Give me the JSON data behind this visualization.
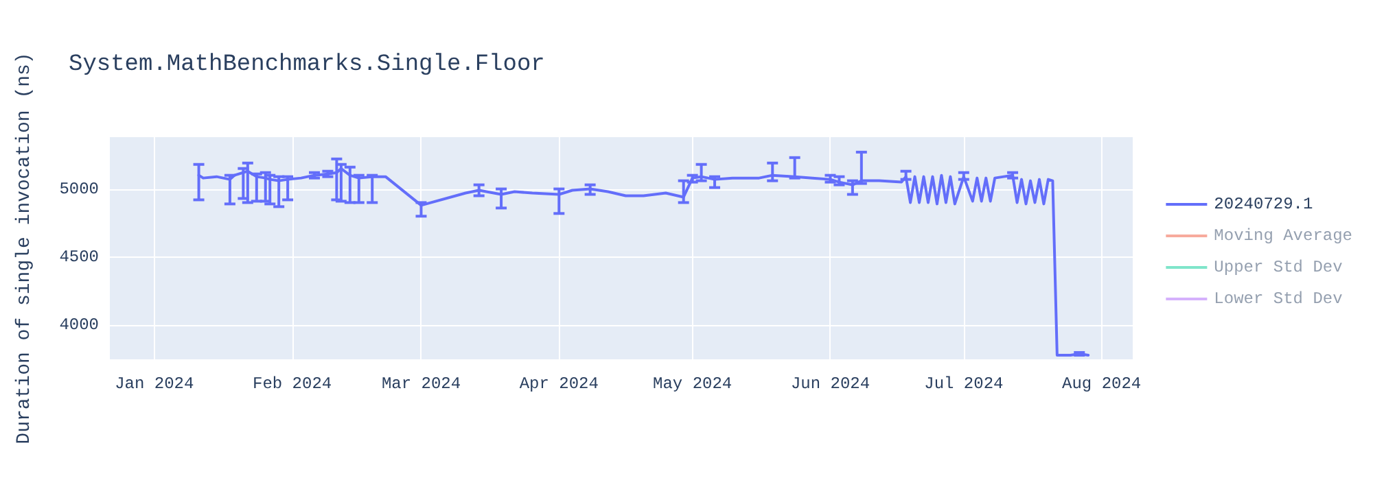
{
  "chart_data": {
    "type": "line",
    "title": "System.MathBenchmarks.Single.Floor",
    "ylabel": "Duration of single invocation (ns)",
    "xlim": [
      "2023-12-22",
      "2024-08-08"
    ],
    "xticks": [
      {
        "value": "2024-01-01",
        "label": "Jan 2024"
      },
      {
        "value": "2024-02-01",
        "label": "Feb 2024"
      },
      {
        "value": "2024-03-01",
        "label": "Mar 2024"
      },
      {
        "value": "2024-04-01",
        "label": "Apr 2024"
      },
      {
        "value": "2024-05-01",
        "label": "May 2024"
      },
      {
        "value": "2024-06-01",
        "label": "Jun 2024"
      },
      {
        "value": "2024-07-01",
        "label": "Jul 2024"
      },
      {
        "value": "2024-08-01",
        "label": "Aug 2024"
      }
    ],
    "ylim": [
      3750,
      5380
    ],
    "yticks": [
      4000,
      4500,
      5000
    ],
    "grid": true,
    "legend": "right",
    "marker": "none",
    "series": [
      {
        "name": "20240729.1",
        "color": "#636efa",
        "x": [
          "2024-01-11",
          "2024-01-12",
          "2024-01-15",
          "2024-01-18",
          "2024-01-19",
          "2024-01-21",
          "2024-01-22",
          "2024-01-24",
          "2024-01-26",
          "2024-01-27",
          "2024-01-29",
          "2024-01-31",
          "2024-02-03",
          "2024-02-06",
          "2024-02-09",
          "2024-02-11",
          "2024-02-12",
          "2024-02-14",
          "2024-02-16",
          "2024-02-19",
          "2024-02-22",
          "2024-03-01",
          "2024-03-11",
          "2024-03-14",
          "2024-03-19",
          "2024-03-22",
          "2024-03-26",
          "2024-04-01",
          "2024-04-04",
          "2024-04-08",
          "2024-04-12",
          "2024-04-16",
          "2024-04-20",
          "2024-04-25",
          "2024-04-29",
          "2024-05-01",
          "2024-05-03",
          "2024-05-06",
          "2024-05-10",
          "2024-05-16",
          "2024-05-19",
          "2024-05-24",
          "2024-05-28",
          "2024-06-01",
          "2024-06-03",
          "2024-06-06",
          "2024-06-08",
          "2024-06-12",
          "2024-06-17",
          "2024-06-18",
          "2024-06-19",
          "2024-06-20",
          "2024-06-21",
          "2024-06-22",
          "2024-06-23",
          "2024-06-24",
          "2024-06-25",
          "2024-06-26",
          "2024-06-27",
          "2024-06-28",
          "2024-06-29",
          "2024-07-01",
          "2024-07-03",
          "2024-07-04",
          "2024-07-05",
          "2024-07-06",
          "2024-07-07",
          "2024-07-08",
          "2024-07-10",
          "2024-07-12",
          "2024-07-13",
          "2024-07-14",
          "2024-07-15",
          "2024-07-16",
          "2024-07-17",
          "2024-07-18",
          "2024-07-19",
          "2024-07-20",
          "2024-07-21",
          "2024-07-22",
          "2024-07-25",
          "2024-07-27",
          "2024-07-29"
        ],
        "values": [
          5100,
          5080,
          5090,
          5070,
          5100,
          5120,
          5130,
          5090,
          5080,
          5070,
          5060,
          5070,
          5080,
          5100,
          5110,
          5120,
          5150,
          5100,
          5080,
          5090,
          5090,
          4880,
          4970,
          4990,
          4960,
          4980,
          4970,
          4960,
          4990,
          5000,
          4980,
          4950,
          4950,
          4970,
          4940,
          5080,
          5090,
          5070,
          5080,
          5080,
          5100,
          5090,
          5080,
          5070,
          5050,
          5030,
          5060,
          5060,
          5050,
          5090,
          4900,
          5090,
          4900,
          5090,
          4900,
          5090,
          4890,
          5100,
          4900,
          5090,
          4890,
          5090,
          4910,
          5080,
          4910,
          5080,
          4910,
          5080,
          5090,
          5100,
          4900,
          5070,
          4890,
          5060,
          4900,
          5070,
          4890,
          5070,
          5060,
          3780,
          3780,
          3790,
          3780
        ],
        "errors": [
          [
            4920,
            5180
          ],
          null,
          null,
          [
            4890,
            5100
          ],
          null,
          [
            4930,
            5150
          ],
          [
            4900,
            5190
          ],
          [
            4910,
            5110
          ],
          [
            4910,
            5120
          ],
          [
            4890,
            5100
          ],
          [
            4870,
            5090
          ],
          [
            4920,
            5090
          ],
          null,
          [
            5080,
            5120
          ],
          [
            5090,
            5130
          ],
          [
            4920,
            5220
          ],
          [
            4910,
            5180
          ],
          [
            4900,
            5160
          ],
          [
            4900,
            5100
          ],
          [
            4900,
            5100
          ],
          null,
          [
            4800,
            4900
          ],
          null,
          [
            4950,
            5030
          ],
          [
            4860,
            5000
          ],
          null,
          null,
          [
            4820,
            5000
          ],
          null,
          [
            4960,
            5030
          ],
          null,
          null,
          null,
          null,
          [
            4900,
            5060
          ],
          [
            5050,
            5100
          ],
          [
            5060,
            5180
          ],
          [
            5010,
            5090
          ],
          null,
          null,
          [
            5060,
            5190
          ],
          [
            5080,
            5230
          ],
          null,
          [
            5050,
            5100
          ],
          [
            5030,
            5090
          ],
          [
            4960,
            5060
          ],
          [
            5040,
            5270
          ],
          null,
          null,
          [
            5070,
            5130
          ],
          null,
          null,
          null,
          null,
          null,
          null,
          null,
          null,
          null,
          null,
          null,
          [
            5070,
            5120
          ],
          null,
          null,
          null,
          null,
          null,
          null,
          null,
          [
            5080,
            5120
          ],
          null,
          null,
          null,
          null,
          null,
          null,
          null,
          null,
          null,
          null,
          null,
          [
            3780,
            3800
          ],
          null
        ]
      },
      {
        "name": "Moving Average",
        "color": "#ef553b"
      },
      {
        "name": "Upper Std Dev",
        "color": "#00cc96"
      },
      {
        "name": "Lower Std Dev",
        "color": "#ab63fa"
      }
    ]
  }
}
